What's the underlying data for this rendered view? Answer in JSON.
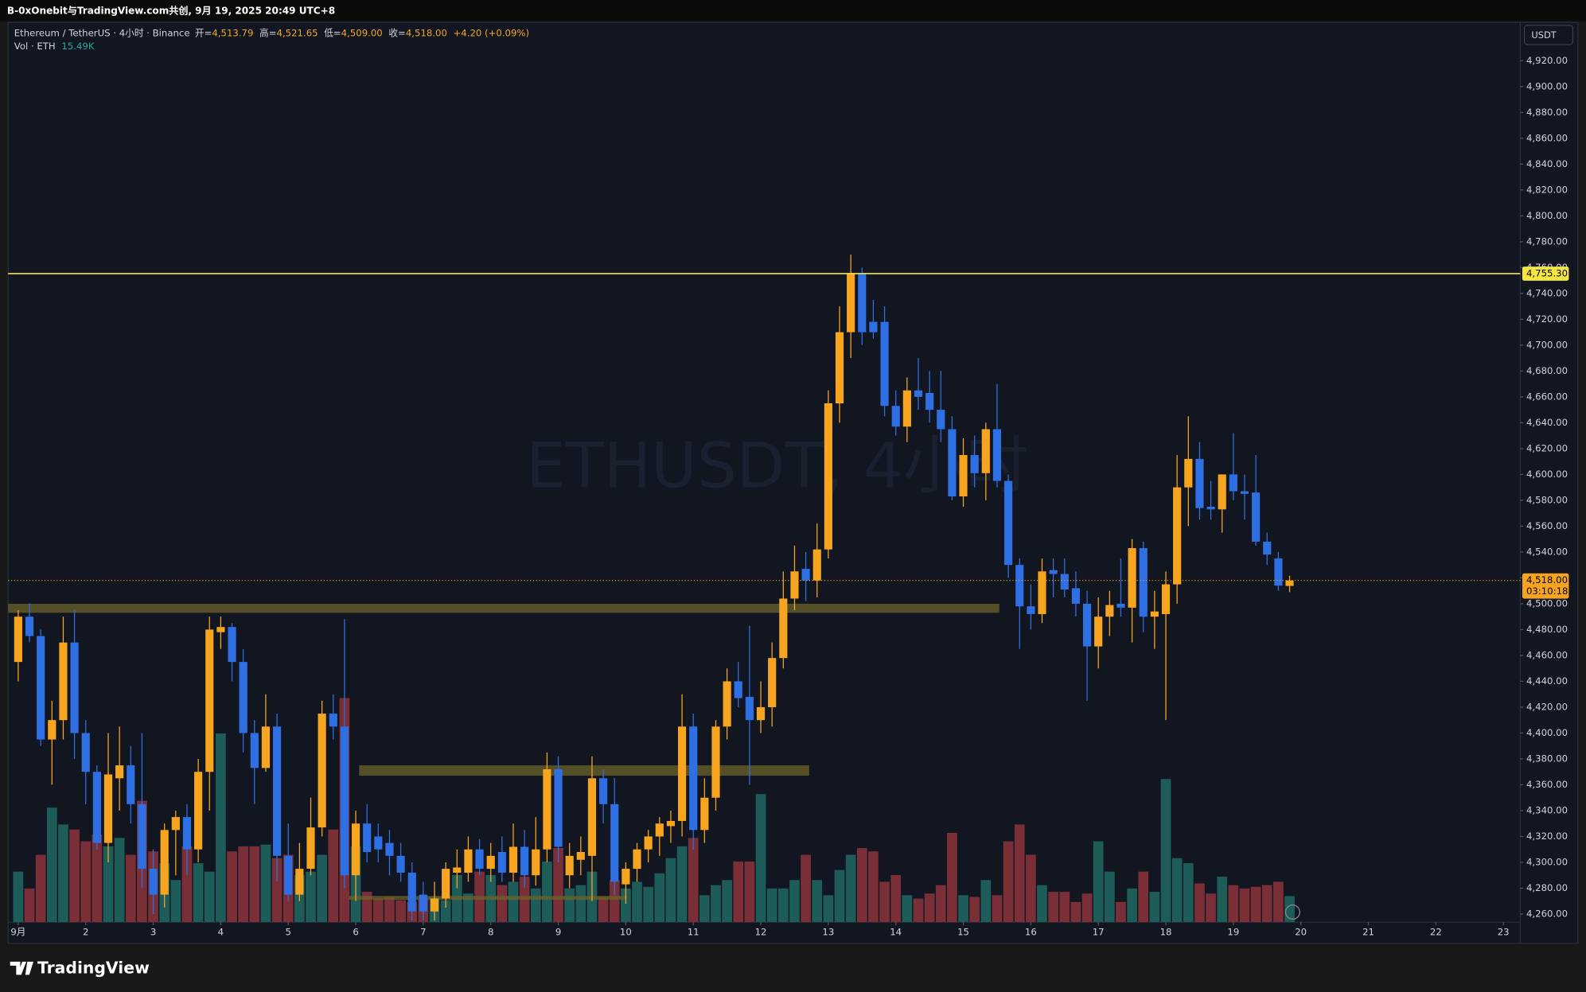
{
  "header": {
    "title": "B-0xOnebit与TradingView.com共创, 9月 19, 2025 20:49 UTC+8",
    "logo": "TradingView"
  },
  "chart_data": {
    "type": "candlestick",
    "symbol": "Ethereum / TetherUS · 4小时 · Binance",
    "watermark": "ETHUSDT, 4小时",
    "legend": [
      {
        "label": "开=",
        "value": "4,513.79"
      },
      {
        "label": "高=",
        "value": "4,521.65"
      },
      {
        "label": "低=",
        "value": "4,509.00"
      },
      {
        "label": "收=",
        "value": "4,518.00"
      }
    ],
    "change": "+4.20 (+0.09%)",
    "volume_legend": {
      "label": "Vol · ETH",
      "value": "15.49K"
    },
    "currency": "USDT",
    "open": [
      4455,
      4490,
      4475,
      4395,
      4410,
      4470,
      4400,
      4370,
      4315,
      4365,
      4375,
      4345,
      4295,
      4275,
      4325,
      4335,
      4310,
      4370,
      4478,
      4482,
      4455,
      4400,
      4373,
      4405,
      4305,
      4275,
      4295,
      4327,
      4415,
      4405,
      4290,
      4330,
      4320,
      4315,
      4305,
      4292,
      4275,
      4262,
      4272,
      4292,
      4292,
      4310,
      4295,
      4308,
      4292,
      4312,
      4290,
      4310,
      4372,
      4290,
      4302,
      4305,
      4365,
      4345,
      4283,
      4295,
      4310,
      4320,
      4328,
      4332,
      4405,
      4325,
      4350,
      4405,
      4440,
      4428,
      4410,
      4420,
      4458,
      4504,
      4527,
      4518,
      4542,
      4655,
      4710,
      4755,
      4718,
      4718,
      4653,
      4637,
      4665,
      4663,
      4650,
      4635,
      4583,
      4615,
      4601,
      4635,
      4595,
      4530,
      4498,
      4492,
      4526,
      4523,
      4512,
      4500,
      4467,
      4490,
      4500,
      4497,
      4543,
      4490,
      4492,
      4515,
      4590,
      4612,
      4575,
      4573,
      4600,
      4587,
      4586,
      4548,
      4535,
      4513.79
    ],
    "high": [
      4495,
      4500,
      4480,
      4425,
      4490,
      4495,
      4410,
      4375,
      4400,
      4405,
      4390,
      4400,
      4310,
      4330,
      4340,
      4345,
      4380,
      4490,
      4490,
      4485,
      4465,
      4410,
      4430,
      4415,
      4330,
      4315,
      4350,
      4425,
      4430,
      4488,
      4340,
      4345,
      4330,
      4325,
      4315,
      4300,
      4285,
      4285,
      4300,
      4310,
      4320,
      4318,
      4315,
      4320,
      4330,
      4325,
      4335,
      4385,
      4382,
      4315,
      4320,
      4382,
      4372,
      4365,
      4300,
      4315,
      4325,
      4335,
      4340,
      4430,
      4415,
      4365,
      4410,
      4450,
      4455,
      4483,
      4440,
      4470,
      4525,
      4545,
      4540,
      4562,
      4665,
      4730,
      4770,
      4760,
      4735,
      4730,
      4665,
      4675,
      4690,
      4680,
      4680,
      4645,
      4628,
      4630,
      4640,
      4670,
      4600,
      4535,
      4515,
      4535,
      4535,
      4535,
      4525,
      4510,
      4505,
      4510,
      4535,
      4550,
      4548,
      4510,
      4525,
      4615,
      4645,
      4625,
      4595,
      4598,
      4632,
      4600,
      4615,
      4555,
      4540,
      4521.65
    ],
    "low": [
      4440,
      4470,
      4390,
      4360,
      4395,
      4380,
      4345,
      4310,
      4300,
      4340,
      4330,
      4280,
      4260,
      4265,
      4290,
      4290,
      4300,
      4340,
      4465,
      4440,
      4385,
      4345,
      4370,
      4285,
      4270,
      4270,
      4290,
      4320,
      4395,
      4280,
      4270,
      4300,
      4300,
      4290,
      4285,
      4255,
      4255,
      4255,
      4265,
      4280,
      4285,
      4290,
      4285,
      4285,
      4285,
      4280,
      4282,
      4300,
      4300,
      4280,
      4290,
      4270,
      4330,
      4275,
      4268,
      4285,
      4300,
      4305,
      4315,
      4320,
      4310,
      4315,
      4340,
      4395,
      4420,
      4360,
      4400,
      4405,
      4450,
      4495,
      4502,
      4505,
      4535,
      4640,
      4690,
      4700,
      4705,
      4645,
      4630,
      4625,
      4650,
      4640,
      4625,
      4580,
      4575,
      4590,
      4580,
      4590,
      4520,
      4465,
      4480,
      4485,
      4505,
      4505,
      4490,
      4425,
      4450,
      4475,
      4490,
      4470,
      4478,
      4465,
      4410,
      4500,
      4560,
      4565,
      4565,
      4555,
      4580,
      4565,
      4545,
      4530,
      4510,
      4509
    ],
    "close": [
      4490,
      4475,
      4395,
      4410,
      4470,
      4400,
      4370,
      4315,
      4368,
      4375,
      4345,
      4295,
      4275,
      4325,
      4335,
      4310,
      4370,
      4480,
      4482,
      4455,
      4400,
      4373,
      4405,
      4305,
      4275,
      4295,
      4327,
      4415,
      4405,
      4290,
      4330,
      4308,
      4310,
      4305,
      4292,
      4262,
      4262,
      4272,
      4295,
      4296,
      4310,
      4295,
      4305,
      4292,
      4312,
      4290,
      4310,
      4372,
      4312,
      4305,
      4308,
      4365,
      4345,
      4285,
      4295,
      4310,
      4320,
      4330,
      4332,
      4405,
      4325,
      4350,
      4405,
      4440,
      4427,
      4410,
      4420,
      4458,
      4504,
      4525,
      4518,
      4542,
      4655,
      4710,
      4755,
      4710,
      4710,
      4653,
      4637,
      4665,
      4660,
      4650,
      4635,
      4583,
      4615,
      4601,
      4635,
      4595,
      4530,
      4498,
      4492,
      4525,
      4523,
      4511,
      4500,
      4467,
      4490,
      4499,
      4497,
      4543,
      4490,
      4494,
      4515,
      4590,
      4612,
      4574,
      4573,
      4600,
      4587,
      4585,
      4548,
      4538,
      4514,
      4518
    ],
    "volume": [
      30,
      20,
      40,
      68,
      58,
      55,
      48,
      52,
      45,
      50,
      40,
      72,
      42,
      35,
      25,
      45,
      35,
      30,
      112,
      42,
      45,
      45,
      46,
      38,
      40,
      28,
      30,
      40,
      55,
      133,
      45,
      18,
      14,
      15,
      13,
      12,
      14,
      15,
      13,
      28,
      17,
      30,
      28,
      22,
      24,
      27,
      20,
      36,
      44,
      20,
      22,
      30,
      15,
      25,
      20,
      24,
      21,
      29,
      38,
      45,
      50,
      16,
      22,
      25,
      36,
      36,
      76,
      20,
      20,
      25,
      40,
      25,
      16,
      31,
      40,
      44,
      42,
      24,
      28,
      16,
      14,
      17,
      22,
      53,
      16,
      15,
      25,
      16,
      48,
      58,
      40,
      22,
      18,
      18,
      12,
      17,
      48,
      30,
      12,
      20,
      30,
      18,
      85,
      38,
      35,
      23,
      17,
      27,
      22,
      20,
      21,
      22,
      24,
      15.49
    ],
    "up_color": "#f7a520",
    "down_color": "#2f6fe4",
    "volume_up_color": "#1d5c58",
    "volume_down_color": "#7a2f37",
    "xlim": [
      -0.9,
      133.5
    ],
    "xticks": [
      {
        "value": 0,
        "label": "9月"
      },
      {
        "value": 6,
        "label": "2"
      },
      {
        "value": 12,
        "label": "3"
      },
      {
        "value": 18,
        "label": "4"
      },
      {
        "value": 24,
        "label": "5"
      },
      {
        "value": 30,
        "label": "6"
      },
      {
        "value": 36,
        "label": "7"
      },
      {
        "value": 42,
        "label": "8"
      },
      {
        "value": 48,
        "label": "9"
      },
      {
        "value": 54,
        "label": "10"
      },
      {
        "value": 60,
        "label": "11"
      },
      {
        "value": 66,
        "label": "12"
      },
      {
        "value": 72,
        "label": "13"
      },
      {
        "value": 78,
        "label": "14"
      },
      {
        "value": 84,
        "label": "15"
      },
      {
        "value": 90,
        "label": "16"
      },
      {
        "value": 96,
        "label": "17"
      },
      {
        "value": 102,
        "label": "18"
      },
      {
        "value": 108,
        "label": "19"
      },
      {
        "value": 114,
        "label": "20"
      },
      {
        "value": 120,
        "label": "21"
      },
      {
        "value": 126,
        "label": "22"
      },
      {
        "value": 132,
        "label": "23"
      }
    ],
    "ylim": [
      4253.7,
      4949.7
    ],
    "yticks": [
      {
        "value": 4260,
        "label": "4,260.00"
      },
      {
        "value": 4280,
        "label": "4,280.00"
      },
      {
        "value": 4300,
        "label": "4,300.00"
      },
      {
        "value": 4320,
        "label": "4,320.00"
      },
      {
        "value": 4340,
        "label": "4,340.00"
      },
      {
        "value": 4360,
        "label": "4,360.00"
      },
      {
        "value": 4380,
        "label": "4,380.00"
      },
      {
        "value": 4400,
        "label": "4,400.00"
      },
      {
        "value": 4420,
        "label": "4,420.00"
      },
      {
        "value": 4440,
        "label": "4,440.00"
      },
      {
        "value": 4460,
        "label": "4,460.00"
      },
      {
        "value": 4480,
        "label": "4,480.00"
      },
      {
        "value": 4500,
        "label": "4,500.00"
      },
      {
        "value": 4520,
        "label": "4,520.00"
      },
      {
        "value": 4540,
        "label": "4,540.00"
      },
      {
        "value": 4560,
        "label": "4,560.00"
      },
      {
        "value": 4580,
        "label": "4,580.00"
      },
      {
        "value": 4600,
        "label": "4,600.00"
      },
      {
        "value": 4620,
        "label": "4,620.00"
      },
      {
        "value": 4640,
        "label": "4,640.00"
      },
      {
        "value": 4660,
        "label": "4,660.00"
      },
      {
        "value": 4680,
        "label": "4,680.00"
      },
      {
        "value": 4700,
        "label": "4,700.00"
      },
      {
        "value": 4720,
        "label": "4,720.00"
      },
      {
        "value": 4740,
        "label": "4,740.00"
      },
      {
        "value": 4760,
        "label": "4,760.00"
      },
      {
        "value": 4780,
        "label": "4,780.00"
      },
      {
        "value": 4800,
        "label": "4,800.00"
      },
      {
        "value": 4820,
        "label": "4,820.00"
      },
      {
        "value": 4840,
        "label": "4,840.00"
      },
      {
        "value": 4860,
        "label": "4,860.00"
      },
      {
        "value": 4880,
        "label": "4,880.00"
      },
      {
        "value": 4900,
        "label": "4,900.00"
      },
      {
        "value": 4920,
        "label": "4,920.00"
      }
    ],
    "volume_ylim": [
      0,
      534
    ],
    "grid": false,
    "price_lines": [
      {
        "value": 4755.3,
        "label": "4,755.30",
        "color": "#f5e642"
      }
    ],
    "last_price": {
      "value": 4518,
      "label": "4,518.00",
      "countdown": "03:10:18",
      "color": "#f7a520"
    },
    "zones": [
      {
        "from": -0.9,
        "to": 87.2,
        "top": 4500,
        "bottom": 4493
      },
      {
        "from": 30.3,
        "to": 70.3,
        "top": 4375,
        "bottom": 4367
      },
      {
        "from": 29.4,
        "to": 54.1,
        "top": 4274,
        "bottom": 4271
      }
    ],
    "zone_color": "#6b6328"
  }
}
